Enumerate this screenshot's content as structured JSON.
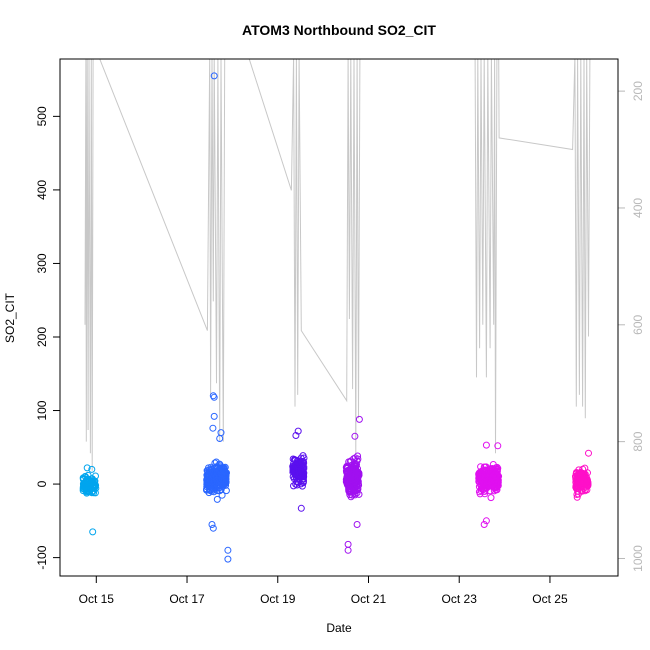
{
  "chart_data": {
    "type": "scatter",
    "title": "ATOM3 Northbound SO2_CIT",
    "xlabel": "Date",
    "ylabel": "SO2_CIT",
    "x_unit": "day of October",
    "xlim": [
      14.2,
      26.5
    ],
    "ylim": [
      -125,
      578
    ],
    "x_ticks": [
      15,
      17,
      19,
      21,
      23,
      25
    ],
    "x_tick_labels": [
      "Oct 15",
      "Oct 17",
      "Oct 19",
      "Oct 21",
      "Oct 23",
      "Oct 25"
    ],
    "y_ticks": [
      -100,
      0,
      100,
      200,
      300,
      400,
      500
    ],
    "y_tick_labels": [
      "-100",
      "0",
      "100",
      "200",
      "300",
      "400",
      "500"
    ],
    "y2_ticks": [
      200,
      400,
      600,
      800,
      1000
    ],
    "y2_tick_labels": [
      "200",
      "400",
      "600",
      "800",
      "1000"
    ],
    "y2_lim": [
      1030,
      145
    ],
    "y2_reversed": true,
    "grid": false,
    "legend": "none",
    "point_groups": [
      {
        "x_center": 14.85,
        "x_spread": 0.14,
        "y_center": -2,
        "y_spread": 10,
        "n": 100,
        "color": "#00a5ee",
        "extra": [
          [
            14.92,
            -65
          ],
          [
            14.8,
            22
          ],
          [
            14.9,
            20
          ]
        ]
      },
      {
        "x_center": 17.65,
        "x_spread": 0.22,
        "y_center": 8,
        "y_spread": 16,
        "n": 260,
        "color": "#2a66ff",
        "extra": [
          [
            17.6,
            555
          ],
          [
            17.58,
            120
          ],
          [
            17.6,
            118
          ],
          [
            17.6,
            92
          ],
          [
            17.57,
            76
          ],
          [
            17.75,
            70
          ],
          [
            17.72,
            62
          ],
          [
            17.9,
            -90
          ],
          [
            17.9,
            -102
          ],
          [
            17.55,
            -55
          ],
          [
            17.58,
            -60
          ]
        ]
      },
      {
        "x_center": 19.45,
        "x_spread": 0.13,
        "y_center": 18,
        "y_spread": 16,
        "n": 120,
        "color": "#5a10ee",
        "extra": [
          [
            19.45,
            72
          ],
          [
            19.4,
            66
          ],
          [
            19.52,
            -33
          ]
        ]
      },
      {
        "x_center": 20.65,
        "x_spread": 0.14,
        "y_center": 10,
        "y_spread": 18,
        "n": 200,
        "color": "#a010f0",
        "extra": [
          [
            20.55,
            -82
          ],
          [
            20.55,
            -90
          ],
          [
            20.8,
            88
          ],
          [
            20.7,
            65
          ],
          [
            20.75,
            -55
          ]
        ]
      },
      {
        "x_center": 23.65,
        "x_spread": 0.22,
        "y_center": 8,
        "y_spread": 14,
        "n": 260,
        "color": "#e010f0",
        "extra": [
          [
            23.55,
            -55
          ],
          [
            23.6,
            53
          ],
          [
            23.85,
            52
          ],
          [
            23.6,
            -50
          ]
        ]
      },
      {
        "x_center": 25.7,
        "x_spread": 0.14,
        "y_center": 5,
        "y_spread": 12,
        "n": 140,
        "color": "#ff10c8",
        "extra": [
          [
            25.85,
            42
          ],
          [
            25.6,
            -18
          ]
        ]
      }
    ],
    "trace_series": {
      "axis": "right",
      "color": "#c8c8c8",
      "points": [
        [
          14.75,
          600
        ],
        [
          14.77,
          140
        ],
        [
          14.78,
          800
        ],
        [
          14.8,
          140
        ],
        [
          14.82,
          780
        ],
        [
          14.84,
          140
        ],
        [
          14.87,
          820
        ],
        [
          14.89,
          140
        ],
        [
          14.91,
          850
        ],
        [
          14.93,
          140
        ],
        [
          15.05,
          140
        ],
        [
          17.45,
          610
        ],
        [
          17.5,
          140
        ],
        [
          17.52,
          720
        ],
        [
          17.55,
          140
        ],
        [
          17.58,
          560
        ],
        [
          17.6,
          140
        ],
        [
          17.65,
          700
        ],
        [
          17.68,
          140
        ],
        [
          17.72,
          800
        ],
        [
          17.75,
          140
        ],
        [
          17.8,
          800
        ],
        [
          17.83,
          140
        ],
        [
          17.87,
          140
        ],
        [
          18.35,
          140
        ],
        [
          19.3,
          370
        ],
        [
          19.35,
          140
        ],
        [
          19.38,
          740
        ],
        [
          19.41,
          140
        ],
        [
          19.44,
          720
        ],
        [
          19.47,
          140
        ],
        [
          19.52,
          610
        ],
        [
          20.52,
          730
        ],
        [
          20.55,
          140
        ],
        [
          20.58,
          590
        ],
        [
          20.61,
          140
        ],
        [
          20.65,
          710
        ],
        [
          20.68,
          140
        ],
        [
          20.72,
          820
        ],
        [
          20.75,
          140
        ],
        [
          20.78,
          760
        ],
        [
          20.81,
          140
        ],
        [
          23.35,
          140
        ],
        [
          23.38,
          690
        ],
        [
          23.41,
          140
        ],
        [
          23.45,
          640
        ],
        [
          23.48,
          140
        ],
        [
          23.52,
          600
        ],
        [
          23.55,
          140
        ],
        [
          23.6,
          690
        ],
        [
          23.63,
          140
        ],
        [
          23.68,
          640
        ],
        [
          23.71,
          140
        ],
        [
          23.76,
          600
        ],
        [
          23.78,
          140
        ],
        [
          23.8,
          820
        ],
        [
          23.83,
          140
        ],
        [
          23.87,
          140
        ],
        [
          23.88,
          280
        ],
        [
          25.5,
          300
        ],
        [
          25.55,
          140
        ],
        [
          25.58,
          740
        ],
        [
          25.61,
          140
        ],
        [
          25.65,
          720
        ],
        [
          25.68,
          140
        ],
        [
          25.72,
          740
        ],
        [
          25.75,
          140
        ],
        [
          25.78,
          760
        ],
        [
          25.81,
          140
        ],
        [
          25.85,
          620
        ],
        [
          25.88,
          140
        ]
      ]
    }
  }
}
